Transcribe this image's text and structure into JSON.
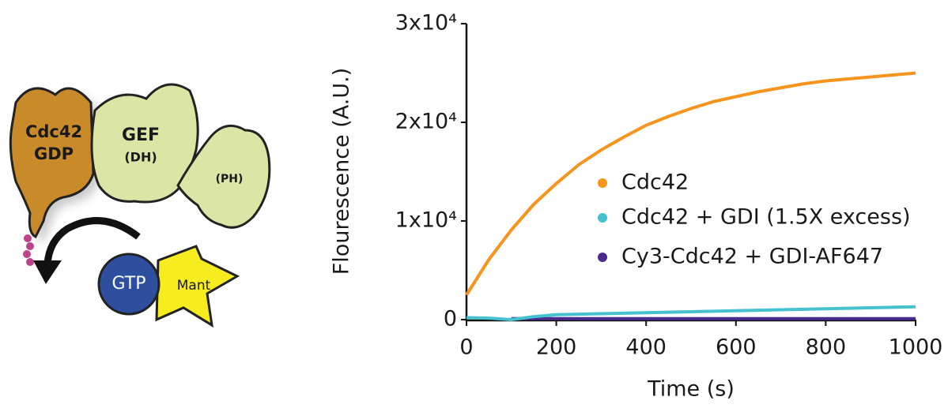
{
  "diagram": {
    "cdc42": "Cdc42",
    "gdp": "GDP",
    "gef": "GEF",
    "dh": "(DH)",
    "ph": "(PH)",
    "gtp": "GTP",
    "mant": "Mant"
  },
  "chart_data": {
    "type": "line",
    "xlabel": "Time (s)",
    "ylabel": "Flourescence (A.U.)",
    "x": [
      0,
      50,
      100,
      150,
      200,
      250,
      300,
      350,
      400,
      450,
      500,
      550,
      600,
      650,
      700,
      750,
      800,
      850,
      900,
      950,
      1000
    ],
    "series": [
      {
        "name": "Cdc42",
        "color": "#f7941d",
        "values": [
          2500,
          6100,
          9100,
          11700,
          13800,
          15700,
          17200,
          18500,
          19700,
          20600,
          21400,
          22100,
          22600,
          23100,
          23500,
          23900,
          24200,
          24400,
          24600,
          24800,
          25000
        ]
      },
      {
        "name": "Cdc42 + GDI (1.5X excess)",
        "color": "#45c1cf",
        "values": [
          200,
          150,
          0,
          300,
          500,
          550,
          600,
          650,
          700,
          750,
          800,
          850,
          900,
          950,
          1000,
          1050,
          1100,
          1150,
          1200,
          1250,
          1300
        ]
      },
      {
        "name": "Cy3-Cdc42 + GDI-AF647",
        "color": "#4a2a8c",
        "values": [
          null,
          null,
          100,
          100,
          100,
          100,
          100,
          100,
          100,
          100,
          100,
          100,
          100,
          100,
          100,
          100,
          100,
          100,
          100,
          100,
          100
        ]
      }
    ],
    "xlim": [
      0,
      1000
    ],
    "xticks": [
      0,
      200,
      400,
      600,
      800,
      1000
    ],
    "ylim": [
      0,
      30000
    ],
    "yticks": [
      0,
      {
        "value": 10000,
        "label": "1x10⁴"
      },
      {
        "value": 20000,
        "label": "2x10⁴"
      },
      {
        "value": 30000,
        "label": "3x10⁴"
      }
    ],
    "legend": "center-right"
  }
}
